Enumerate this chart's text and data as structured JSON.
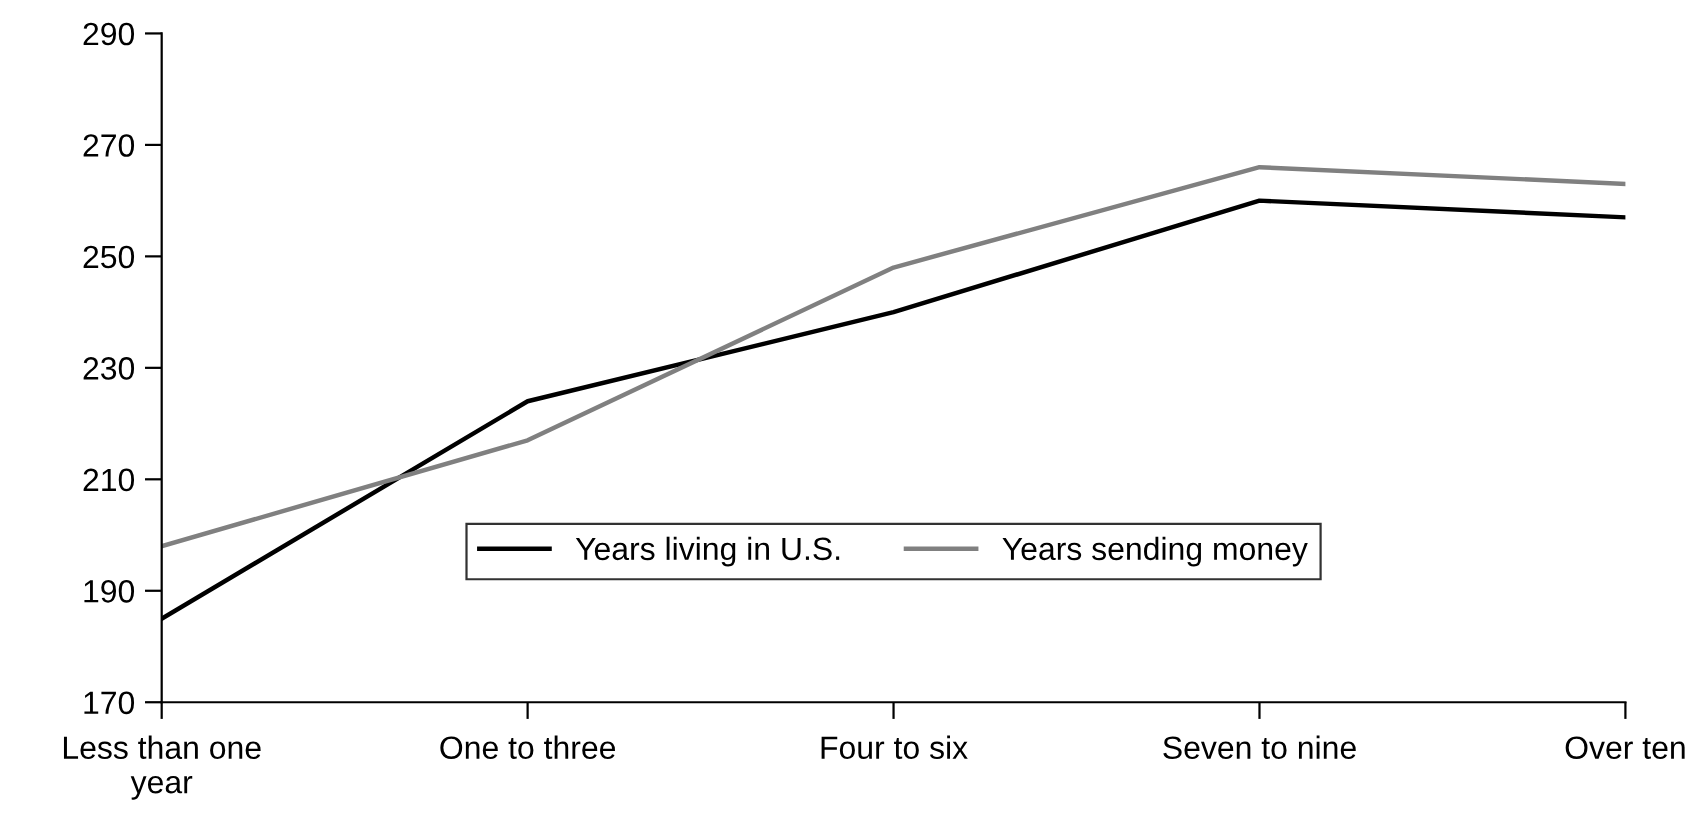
{
  "chart_data": {
    "type": "line",
    "categories": [
      "Less than one\nyear",
      "One to three",
      "Four to six",
      "Seven to nine",
      "Over ten"
    ],
    "series": [
      {
        "name": "Years living in U.S.",
        "color": "#000000",
        "values": [
          185,
          224,
          240,
          260,
          257
        ]
      },
      {
        "name": "Years sending money",
        "color": "#808080",
        "values": [
          198,
          217,
          248,
          266,
          263
        ]
      }
    ],
    "ylim": [
      170,
      290
    ],
    "yticks": [
      170,
      190,
      210,
      230,
      250,
      270,
      290
    ],
    "grid": false,
    "legend": "bottom",
    "marker": "none",
    "line_style": "solid"
  }
}
